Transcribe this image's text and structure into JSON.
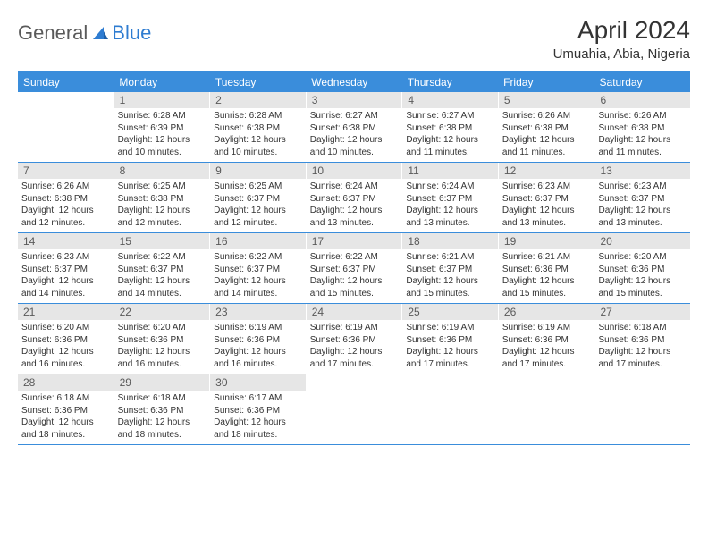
{
  "brand": {
    "part1": "General",
    "part2": "Blue"
  },
  "title": "April 2024",
  "location": "Umuahia, Abia, Nigeria",
  "colors": {
    "header_bar": "#3a8ddb",
    "daynum_bg": "#e6e6e6",
    "daynum_text": "#5a5a5a",
    "brand_gray": "#5a5a5a",
    "brand_blue": "#2e7cd1"
  },
  "weekdays": [
    "Sunday",
    "Monday",
    "Tuesday",
    "Wednesday",
    "Thursday",
    "Friday",
    "Saturday"
  ],
  "weeks": [
    [
      {
        "n": "",
        "sr": "",
        "ss": "",
        "dl": ""
      },
      {
        "n": "1",
        "sr": "Sunrise: 6:28 AM",
        "ss": "Sunset: 6:39 PM",
        "dl": "Daylight: 12 hours and 10 minutes."
      },
      {
        "n": "2",
        "sr": "Sunrise: 6:28 AM",
        "ss": "Sunset: 6:38 PM",
        "dl": "Daylight: 12 hours and 10 minutes."
      },
      {
        "n": "3",
        "sr": "Sunrise: 6:27 AM",
        "ss": "Sunset: 6:38 PM",
        "dl": "Daylight: 12 hours and 10 minutes."
      },
      {
        "n": "4",
        "sr": "Sunrise: 6:27 AM",
        "ss": "Sunset: 6:38 PM",
        "dl": "Daylight: 12 hours and 11 minutes."
      },
      {
        "n": "5",
        "sr": "Sunrise: 6:26 AM",
        "ss": "Sunset: 6:38 PM",
        "dl": "Daylight: 12 hours and 11 minutes."
      },
      {
        "n": "6",
        "sr": "Sunrise: 6:26 AM",
        "ss": "Sunset: 6:38 PM",
        "dl": "Daylight: 12 hours and 11 minutes."
      }
    ],
    [
      {
        "n": "7",
        "sr": "Sunrise: 6:26 AM",
        "ss": "Sunset: 6:38 PM",
        "dl": "Daylight: 12 hours and 12 minutes."
      },
      {
        "n": "8",
        "sr": "Sunrise: 6:25 AM",
        "ss": "Sunset: 6:38 PM",
        "dl": "Daylight: 12 hours and 12 minutes."
      },
      {
        "n": "9",
        "sr": "Sunrise: 6:25 AM",
        "ss": "Sunset: 6:37 PM",
        "dl": "Daylight: 12 hours and 12 minutes."
      },
      {
        "n": "10",
        "sr": "Sunrise: 6:24 AM",
        "ss": "Sunset: 6:37 PM",
        "dl": "Daylight: 12 hours and 13 minutes."
      },
      {
        "n": "11",
        "sr": "Sunrise: 6:24 AM",
        "ss": "Sunset: 6:37 PM",
        "dl": "Daylight: 12 hours and 13 minutes."
      },
      {
        "n": "12",
        "sr": "Sunrise: 6:23 AM",
        "ss": "Sunset: 6:37 PM",
        "dl": "Daylight: 12 hours and 13 minutes."
      },
      {
        "n": "13",
        "sr": "Sunrise: 6:23 AM",
        "ss": "Sunset: 6:37 PM",
        "dl": "Daylight: 12 hours and 13 minutes."
      }
    ],
    [
      {
        "n": "14",
        "sr": "Sunrise: 6:23 AM",
        "ss": "Sunset: 6:37 PM",
        "dl": "Daylight: 12 hours and 14 minutes."
      },
      {
        "n": "15",
        "sr": "Sunrise: 6:22 AM",
        "ss": "Sunset: 6:37 PM",
        "dl": "Daylight: 12 hours and 14 minutes."
      },
      {
        "n": "16",
        "sr": "Sunrise: 6:22 AM",
        "ss": "Sunset: 6:37 PM",
        "dl": "Daylight: 12 hours and 14 minutes."
      },
      {
        "n": "17",
        "sr": "Sunrise: 6:22 AM",
        "ss": "Sunset: 6:37 PM",
        "dl": "Daylight: 12 hours and 15 minutes."
      },
      {
        "n": "18",
        "sr": "Sunrise: 6:21 AM",
        "ss": "Sunset: 6:37 PM",
        "dl": "Daylight: 12 hours and 15 minutes."
      },
      {
        "n": "19",
        "sr": "Sunrise: 6:21 AM",
        "ss": "Sunset: 6:36 PM",
        "dl": "Daylight: 12 hours and 15 minutes."
      },
      {
        "n": "20",
        "sr": "Sunrise: 6:20 AM",
        "ss": "Sunset: 6:36 PM",
        "dl": "Daylight: 12 hours and 15 minutes."
      }
    ],
    [
      {
        "n": "21",
        "sr": "Sunrise: 6:20 AM",
        "ss": "Sunset: 6:36 PM",
        "dl": "Daylight: 12 hours and 16 minutes."
      },
      {
        "n": "22",
        "sr": "Sunrise: 6:20 AM",
        "ss": "Sunset: 6:36 PM",
        "dl": "Daylight: 12 hours and 16 minutes."
      },
      {
        "n": "23",
        "sr": "Sunrise: 6:19 AM",
        "ss": "Sunset: 6:36 PM",
        "dl": "Daylight: 12 hours and 16 minutes."
      },
      {
        "n": "24",
        "sr": "Sunrise: 6:19 AM",
        "ss": "Sunset: 6:36 PM",
        "dl": "Daylight: 12 hours and 17 minutes."
      },
      {
        "n": "25",
        "sr": "Sunrise: 6:19 AM",
        "ss": "Sunset: 6:36 PM",
        "dl": "Daylight: 12 hours and 17 minutes."
      },
      {
        "n": "26",
        "sr": "Sunrise: 6:19 AM",
        "ss": "Sunset: 6:36 PM",
        "dl": "Daylight: 12 hours and 17 minutes."
      },
      {
        "n": "27",
        "sr": "Sunrise: 6:18 AM",
        "ss": "Sunset: 6:36 PM",
        "dl": "Daylight: 12 hours and 17 minutes."
      }
    ],
    [
      {
        "n": "28",
        "sr": "Sunrise: 6:18 AM",
        "ss": "Sunset: 6:36 PM",
        "dl": "Daylight: 12 hours and 18 minutes."
      },
      {
        "n": "29",
        "sr": "Sunrise: 6:18 AM",
        "ss": "Sunset: 6:36 PM",
        "dl": "Daylight: 12 hours and 18 minutes."
      },
      {
        "n": "30",
        "sr": "Sunrise: 6:17 AM",
        "ss": "Sunset: 6:36 PM",
        "dl": "Daylight: 12 hours and 18 minutes."
      },
      {
        "n": "",
        "sr": "",
        "ss": "",
        "dl": ""
      },
      {
        "n": "",
        "sr": "",
        "ss": "",
        "dl": ""
      },
      {
        "n": "",
        "sr": "",
        "ss": "",
        "dl": ""
      },
      {
        "n": "",
        "sr": "",
        "ss": "",
        "dl": ""
      }
    ]
  ]
}
